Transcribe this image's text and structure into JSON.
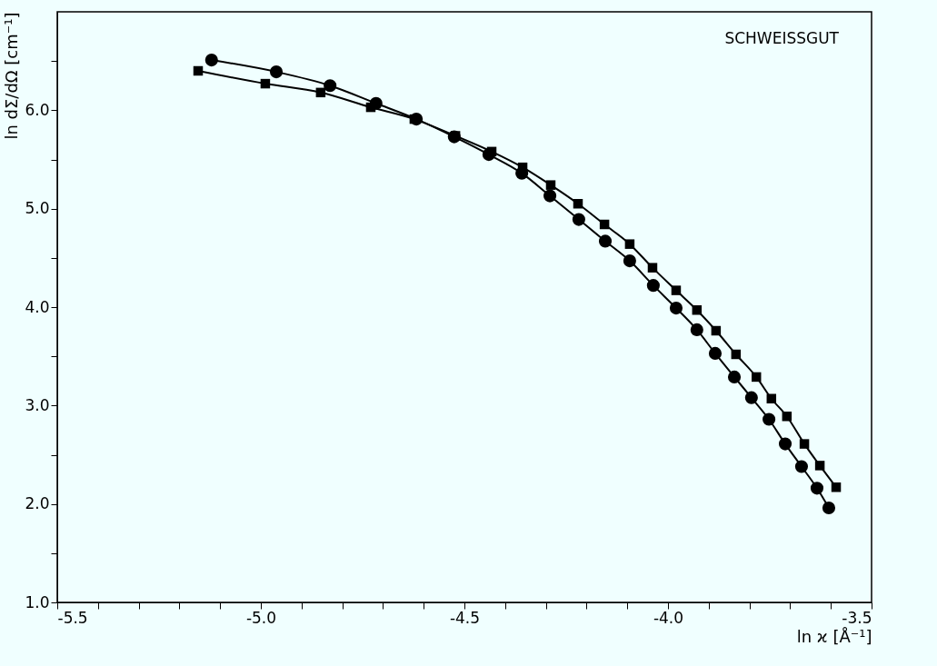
{
  "chart_data": {
    "type": "line",
    "xlabel": "ln ϰ [Å⁻¹]",
    "ylabel": "ln dΣ/dΩ [cm⁻¹]",
    "x": [
      -5.121,
      -4.962,
      -4.83,
      -4.717,
      -4.618,
      -4.525,
      -4.44,
      -4.359,
      -4.29,
      -4.219,
      -4.154,
      -4.094,
      -4.036,
      -3.98,
      -3.929,
      -3.884,
      -3.837,
      -3.795,
      -3.752,
      -3.712,
      -3.672,
      -3.634,
      -3.605
    ],
    "series": [
      {
        "color": "#000000",
        "marker": "circle",
        "values": [
          6.51,
          6.39,
          6.25,
          6.07,
          5.91,
          5.73,
          5.55,
          5.36,
          5.13,
          4.89,
          4.67,
          4.47,
          4.22,
          3.99,
          3.77,
          3.53,
          3.29,
          3.08,
          2.86,
          2.61,
          2.38,
          2.16,
          1.96
        ]
      },
      {
        "color": "#000000",
        "marker": "square",
        "x": [
          -5.154,
          -4.989,
          -4.853,
          -4.73,
          -4.623,
          -4.522,
          -4.433,
          -4.357,
          -4.288,
          -4.221,
          -4.156,
          -4.094,
          -4.038,
          -3.98,
          -3.929,
          -3.882,
          -3.833,
          -3.783,
          -3.746,
          -3.708,
          -3.665,
          -3.627,
          -3.587
        ],
        "values": [
          6.4,
          6.27,
          6.18,
          6.03,
          5.91,
          5.74,
          5.58,
          5.42,
          5.24,
          5.05,
          4.84,
          4.64,
          4.4,
          4.17,
          3.97,
          3.76,
          3.52,
          3.29,
          3.07,
          2.89,
          2.61,
          2.39,
          2.17
        ]
      }
    ],
    "annotations": [
      "SCHWEISSGUT"
    ],
    "xlim": [
      -5.5,
      -3.5
    ],
    "ylim": [
      1.0,
      7.0
    ],
    "xticks": [
      {
        "value": -5.5,
        "label": "-5.5"
      },
      {
        "value": -5.4,
        "label": null
      },
      {
        "value": -5.3,
        "label": null
      },
      {
        "value": -5.2,
        "label": null
      },
      {
        "value": -5.1,
        "label": null
      },
      {
        "value": -5.0,
        "label": "-5.0"
      },
      {
        "value": -4.9,
        "label": null
      },
      {
        "value": -4.8,
        "label": null
      },
      {
        "value": -4.7,
        "label": null
      },
      {
        "value": -4.6,
        "label": null
      },
      {
        "value": -4.5,
        "label": "-4.5"
      },
      {
        "value": -4.4,
        "label": null
      },
      {
        "value": -4.3,
        "label": null
      },
      {
        "value": -4.2,
        "label": null
      },
      {
        "value": -4.1,
        "label": null
      },
      {
        "value": -4.0,
        "label": "-4.0"
      },
      {
        "value": -3.9,
        "label": null
      },
      {
        "value": -3.8,
        "label": null
      },
      {
        "value": -3.7,
        "label": null
      },
      {
        "value": -3.6,
        "label": null
      },
      {
        "value": -3.5,
        "label": "-3.5"
      }
    ],
    "yticks": [
      {
        "value": 1.0,
        "label": "1.0"
      },
      {
        "value": 1.5,
        "label": null
      },
      {
        "value": 2.0,
        "label": "2.0"
      },
      {
        "value": 2.5,
        "label": null
      },
      {
        "value": 3.0,
        "label": "3.0"
      },
      {
        "value": 3.5,
        "label": null
      },
      {
        "value": 4.0,
        "label": "4.0"
      },
      {
        "value": 4.5,
        "label": null
      },
      {
        "value": 5.0,
        "label": "5.0"
      },
      {
        "value": 5.5,
        "label": null
      },
      {
        "value": 6.0,
        "label": "6.0"
      },
      {
        "value": 6.5,
        "label": null
      }
    ],
    "line_style": "solid"
  }
}
